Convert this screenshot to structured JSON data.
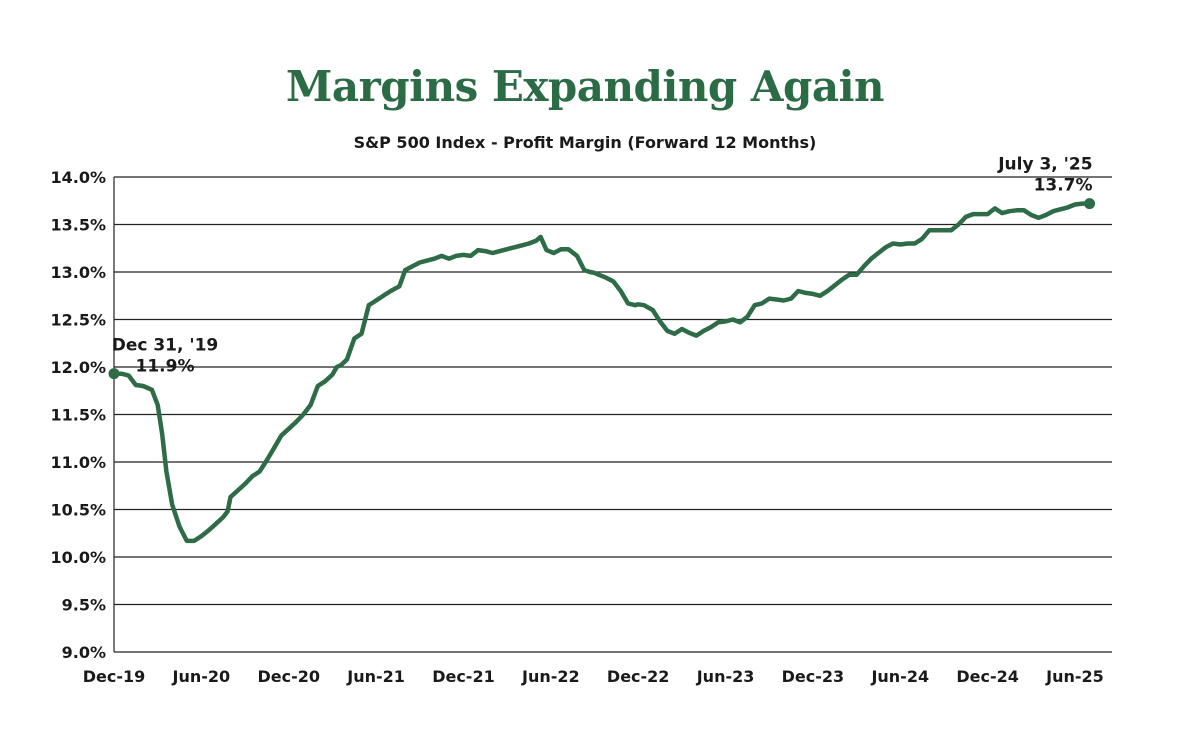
{
  "colors": {
    "accent": "#2b6b45",
    "line": "#2e6b47",
    "grid": "#222222",
    "text": "#1a1a1a"
  },
  "chart_data": {
    "type": "line",
    "title": "Margins Expanding Again",
    "subtitle": "S&P 500 Index - Profit Margin (Forward 12 Months)",
    "xlabel": "",
    "ylabel": "",
    "ylim": [
      9.0,
      14.0
    ],
    "yticks": [
      9.0,
      9.5,
      10.0,
      10.5,
      11.0,
      11.5,
      12.0,
      12.5,
      13.0,
      13.5,
      14.0
    ],
    "ytick_labels": [
      "9.0%",
      "9.5%",
      "10.0%",
      "10.5%",
      "11.0%",
      "11.5%",
      "12.0%",
      "12.5%",
      "13.0%",
      "13.5%",
      "14.0%"
    ],
    "xlim": [
      0,
      66
    ],
    "xticks": [
      0,
      6,
      12,
      18,
      24,
      30,
      36,
      42,
      48,
      54,
      60,
      66
    ],
    "xtick_labels": [
      "Dec-19",
      "Jun-20",
      "Dec-20",
      "Jun-21",
      "Dec-21",
      "Jun-22",
      "Dec-22",
      "Jun-23",
      "Dec-23",
      "Jun-24",
      "Dec-24",
      "Jun-25"
    ],
    "grid": true,
    "series": [
      {
        "name": "Profit Margin (Forward 12 Months)",
        "x": [
          0,
          0.5,
          1.0,
          1.5,
          2.0,
          2.6,
          3.0,
          3.3,
          3.6,
          4.0,
          4.5,
          5.0,
          5.5,
          6.0,
          6.5,
          7.0,
          7.5,
          7.8,
          8.0,
          8.5,
          9.0,
          9.5,
          10.0,
          10.5,
          11.0,
          11.5,
          12.0,
          12.5,
          13.0,
          13.5,
          14.0,
          14.5,
          15.0,
          15.3,
          15.6,
          16.0,
          16.5,
          17.0,
          17.5,
          17.8,
          18.0,
          18.2,
          18.6,
          19.0,
          19.6,
          20.0,
          20.5,
          21.0,
          21.5,
          22.0,
          22.5,
          23.0,
          23.5,
          24.0,
          24.5,
          25.0,
          25.5,
          26.0,
          26.5,
          27.0,
          27.5,
          28.0,
          28.5,
          29.0,
          29.3,
          29.7,
          30.2,
          30.7,
          31.2,
          31.8,
          32.3,
          32.7,
          33.0,
          33.3,
          33.8,
          34.3,
          34.8,
          35.3,
          35.8,
          36.0,
          36.4,
          37.0,
          37.5,
          38.0,
          38.5,
          39.0,
          39.5,
          40.0,
          40.5,
          41.0,
          41.5,
          42.0,
          42.5,
          43.0,
          43.5,
          44.0,
          44.5,
          45.0,
          45.5,
          46.0,
          46.5,
          47.0,
          47.5,
          48.0,
          48.5,
          49.0,
          49.5,
          50.0,
          50.5,
          51.0,
          51.5,
          52.0,
          52.5,
          53.0,
          53.5,
          54.0,
          54.5,
          55.0,
          55.5,
          56.0,
          56.5,
          57.0,
          57.5,
          58.0,
          58.5,
          59.0,
          59.5,
          60.0,
          60.5,
          61.0,
          61.5,
          62.0,
          62.5,
          63.0,
          63.5,
          64.0,
          64.5,
          65.0,
          65.5,
          66.0,
          66.5,
          67.0
        ],
        "values": [
          11.93,
          11.93,
          11.91,
          11.81,
          11.8,
          11.76,
          11.6,
          11.3,
          10.9,
          10.55,
          10.32,
          10.17,
          10.17,
          10.22,
          10.28,
          10.35,
          10.42,
          10.48,
          10.63,
          10.7,
          10.77,
          10.85,
          10.9,
          11.02,
          11.15,
          11.28,
          11.35,
          11.42,
          11.5,
          11.6,
          11.8,
          11.85,
          11.92,
          12.0,
          12.02,
          12.08,
          12.3,
          12.35,
          12.65,
          12.68,
          12.7,
          12.72,
          12.76,
          12.8,
          12.85,
          13.02,
          13.06,
          13.1,
          13.12,
          13.14,
          13.17,
          13.14,
          13.17,
          13.18,
          13.17,
          13.23,
          13.22,
          13.2,
          13.22,
          13.24,
          13.26,
          13.28,
          13.3,
          13.33,
          13.37,
          13.23,
          13.2,
          13.24,
          13.24,
          13.17,
          13.02,
          13.0,
          12.99,
          12.97,
          12.94,
          12.9,
          12.8,
          12.67,
          12.65,
          12.66,
          12.65,
          12.6,
          12.48,
          12.38,
          12.35,
          12.4,
          12.36,
          12.33,
          12.38,
          12.42,
          12.47,
          12.48,
          12.5,
          12.47,
          12.53,
          12.65,
          12.67,
          12.72,
          12.71,
          12.7,
          12.72,
          12.8,
          12.78,
          12.77,
          12.75,
          12.8,
          12.86,
          12.92,
          12.97,
          12.97,
          13.06,
          13.14,
          13.2,
          13.26,
          13.3,
          13.29,
          13.3,
          13.3,
          13.35,
          13.44,
          13.44,
          13.44,
          13.44,
          13.5,
          13.58,
          13.61,
          13.61,
          13.61,
          13.67,
          13.62,
          13.64,
          13.65,
          13.65,
          13.6,
          13.57,
          13.6,
          13.64,
          13.66,
          13.68,
          13.71,
          13.72,
          13.72
        ]
      }
    ],
    "annotations": [
      {
        "x": 0,
        "y": 11.93,
        "label_line1": "Dec 31, '19",
        "label_line2": "11.9%"
      },
      {
        "x": 67,
        "y": 13.72,
        "label_line1": "July 3, '25",
        "label_line2": "13.7%"
      }
    ]
  }
}
